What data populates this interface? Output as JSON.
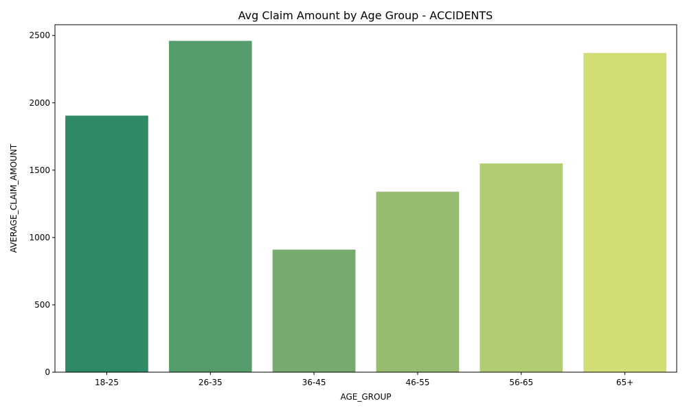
{
  "chart_data": {
    "type": "bar",
    "title": "Avg Claim Amount by Age Group - ACCIDENTS",
    "xlabel": "AGE_GROUP",
    "ylabel": "AVERAGE_CLAIM_AMOUNT",
    "categories": [
      "18-25",
      "26-35",
      "36-45",
      "46-55",
      "56-65",
      "65+"
    ],
    "values": [
      1905,
      2460,
      910,
      1340,
      1550,
      2370
    ],
    "colors": [
      "#318a66",
      "#549c6b",
      "#76ab6e",
      "#97bc70",
      "#b2cd71",
      "#d2dd75"
    ],
    "ylim": [
      0,
      2580
    ],
    "yticks": [
      0,
      500,
      1000,
      1500,
      2000,
      2500
    ],
    "grid": false,
    "legend": "none"
  }
}
